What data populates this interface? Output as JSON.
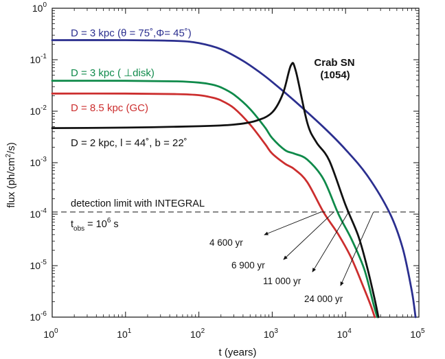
{
  "chart_data": {
    "type": "line",
    "xlabel": "t (years)",
    "ylabel_parts": {
      "pre": "flux (ph/cm",
      "sup": "2",
      "post": "/s)"
    },
    "xscale": "log",
    "yscale": "log",
    "xlim": [
      1,
      100000
    ],
    "ylim": [
      1e-06,
      1
    ],
    "x_ticks": [
      {
        "value": 1,
        "base": "10",
        "exp": "0"
      },
      {
        "value": 10,
        "base": "10",
        "exp": "1"
      },
      {
        "value": 100,
        "base": "10",
        "exp": "2"
      },
      {
        "value": 1000,
        "base": "10",
        "exp": "3"
      },
      {
        "value": 10000,
        "base": "10",
        "exp": "4"
      },
      {
        "value": 100000,
        "base": "10",
        "exp": "5"
      }
    ],
    "y_ticks": [
      {
        "value": 1,
        "base": "10",
        "exp": "0"
      },
      {
        "value": 0.1,
        "base": "10",
        "exp": "-1"
      },
      {
        "value": 0.01,
        "base": "10",
        "exp": "-2"
      },
      {
        "value": 0.001,
        "base": "10",
        "exp": "-3"
      },
      {
        "value": 0.0001,
        "base": "10",
        "exp": "-4"
      },
      {
        "value": 1e-05,
        "base": "10",
        "exp": "-5"
      },
      {
        "value": 1e-06,
        "base": "10",
        "exp": "-6"
      }
    ],
    "grid": false,
    "series": [
      {
        "label": "D = 3 kpc (θ = 75˚,Φ= 45˚)",
        "color": "#2b2f8f",
        "x": [
          1,
          10,
          50,
          100,
          200,
          400,
          700,
          1000,
          2000,
          5000,
          10000,
          20000,
          40000,
          60000,
          80000,
          90000
        ],
        "y": [
          0.24,
          0.24,
          0.232,
          0.21,
          0.16,
          0.095,
          0.055,
          0.037,
          0.016,
          0.0049,
          0.0018,
          0.00055,
          0.000105,
          2.2e-05,
          3.2e-06,
          1e-06
        ]
      },
      {
        "label": "D = 3 kpc ( ⊥disk)",
        "color": "#0f8a4a",
        "x": [
          1,
          10,
          50,
          100,
          150,
          200,
          300,
          500,
          800,
          1000,
          1500,
          2000,
          3000,
          5000,
          8000,
          12000,
          18000,
          24000,
          27000
        ],
        "y": [
          0.039,
          0.039,
          0.038,
          0.036,
          0.033,
          0.029,
          0.021,
          0.011,
          0.0048,
          0.003,
          0.00175,
          0.0015,
          0.00115,
          0.00048,
          0.0001,
          3.3e-05,
          8.5e-06,
          1.8e-06,
          1e-06
        ]
      },
      {
        "label": "D = 8.5 kpc (GC)",
        "color": "#cc2e2e",
        "x": [
          1,
          10,
          50,
          100,
          150,
          200,
          300,
          500,
          800,
          1000,
          1500,
          2000,
          3000,
          5000,
          8000,
          12000,
          18000,
          22000,
          25000
        ],
        "y": [
          0.022,
          0.022,
          0.0215,
          0.0205,
          0.0185,
          0.0162,
          0.0115,
          0.0055,
          0.0023,
          0.0015,
          0.00095,
          0.00075,
          0.00042,
          0.00011,
          4e-05,
          1.4e-05,
          3.5e-06,
          1.7e-06,
          1e-06
        ]
      },
      {
        "label": "D = 2 kpc,  l = 44˚, b = 22˚",
        "color": "#111111",
        "x": [
          1,
          10,
          100,
          300,
          600,
          1000,
          1400,
          1800,
          2100,
          3000,
          4000,
          6000,
          10000,
          15000,
          20000,
          25000,
          28000
        ],
        "y": [
          0.0047,
          0.0048,
          0.0051,
          0.0055,
          0.0065,
          0.0095,
          0.022,
          0.078,
          0.06,
          0.006,
          0.0025,
          0.0011,
          0.00015,
          3.7e-05,
          8.5e-06,
          2.2e-06,
          1e-06
        ]
      }
    ],
    "detection_limit": {
      "value": 0.00011,
      "label": "detection limit with INTEGRAL",
      "tobs": {
        "t": "t",
        "sub": "obs",
        "eq": " = 10",
        "sup": "6",
        "unit": " s"
      }
    },
    "annotations": [
      {
        "text": "Crab SN",
        "color": "#111111"
      },
      {
        "text": "(1054)",
        "color": "#111111"
      }
    ],
    "crossings": [
      {
        "label": "4 600 yr",
        "x": 4600
      },
      {
        "label": "6 900 yr",
        "x": 6900
      },
      {
        "label": "11 000 yr",
        "x": 11000
      },
      {
        "label": "24 000 yr",
        "x": 24000
      }
    ]
  }
}
